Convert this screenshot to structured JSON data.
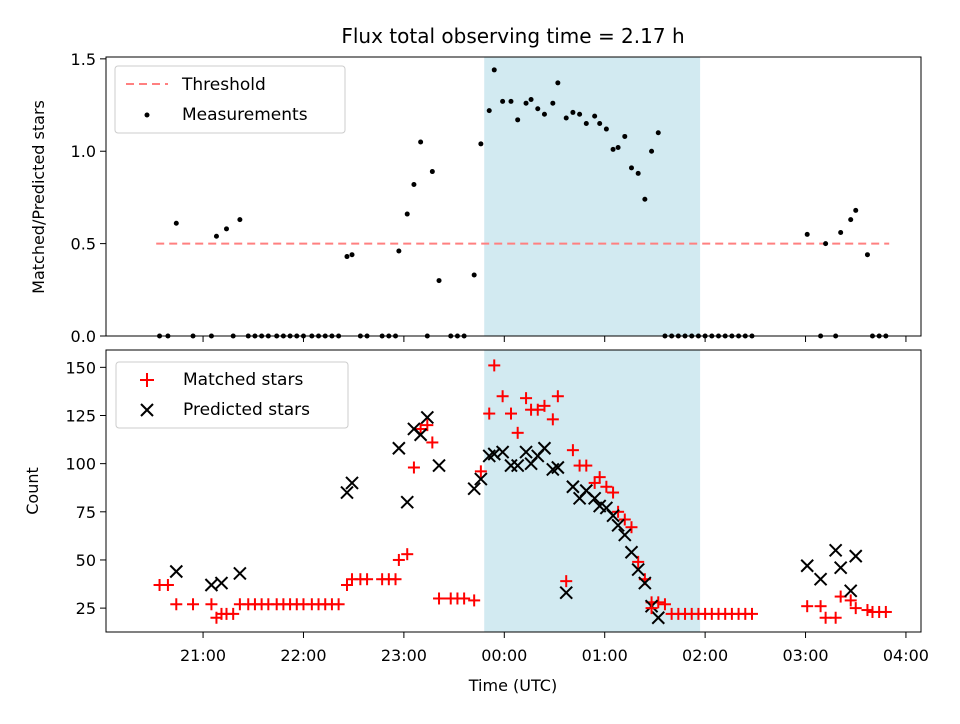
{
  "figure_title": "Flux total observing time = 2.17 h",
  "chart_data": [
    {
      "type": "scatter",
      "title": "Flux total observing time = 2.17 h",
      "xlabel": "",
      "ylabel": "Matched/Predicted stars",
      "xlim": [
        "20:02",
        "04:09"
      ],
      "ylim": [
        0.0,
        1.51
      ],
      "xticks": [
        "21:00",
        "22:00",
        "23:00",
        "00:00",
        "01:00",
        "02:00",
        "03:00",
        "04:00"
      ],
      "yticks": [
        "0.0",
        "0.5",
        "1.0",
        "1.5"
      ],
      "shaded_span": [
        "23:48",
        "01:57"
      ],
      "shaded_color": "#add8e6",
      "legend_position": "upper-left",
      "threshold": {
        "name": "Threshold",
        "y": 0.5,
        "x_range": [
          "20:32",
          "03:50"
        ],
        "color": "#ff8080",
        "style": "dashed"
      },
      "series": [
        {
          "name": "Measurements",
          "color": "#000000",
          "marker": "dot",
          "points": [
            [
              "20:34",
              0
            ],
            [
              "20:39",
              0
            ],
            [
              "20:44",
              0.61
            ],
            [
              "20:54",
              0
            ],
            [
              "21:05",
              0
            ],
            [
              "21:08",
              0.54
            ],
            [
              "21:14",
              0.58
            ],
            [
              "21:18",
              0
            ],
            [
              "21:22",
              0.63
            ],
            [
              "21:27",
              0
            ],
            [
              "21:31",
              0
            ],
            [
              "21:35",
              0
            ],
            [
              "21:39",
              0
            ],
            [
              "21:44",
              0
            ],
            [
              "21:48",
              0
            ],
            [
              "21:52",
              0
            ],
            [
              "21:56",
              0
            ],
            [
              "22:00",
              0
            ],
            [
              "22:05",
              0
            ],
            [
              "22:09",
              0
            ],
            [
              "22:13",
              0
            ],
            [
              "22:17",
              0
            ],
            [
              "22:21",
              0
            ],
            [
              "22:26",
              0.43
            ],
            [
              "22:29",
              0.44
            ],
            [
              "22:34",
              0
            ],
            [
              "22:38",
              0
            ],
            [
              "22:47",
              0
            ],
            [
              "22:51",
              0
            ],
            [
              "22:55",
              0
            ],
            [
              "22:57",
              0.46
            ],
            [
              "23:02",
              0.66
            ],
            [
              "23:06",
              0.82
            ],
            [
              "23:10",
              1.05
            ],
            [
              "23:14",
              0
            ],
            [
              "23:17",
              0.89
            ],
            [
              "23:21",
              0.3
            ],
            [
              "23:28",
              0
            ],
            [
              "23:32",
              0
            ],
            [
              "23:36",
              0
            ],
            [
              "23:42",
              0.33
            ],
            [
              "23:46",
              1.04
            ],
            [
              "23:51",
              1.22
            ],
            [
              "23:54",
              1.44
            ],
            [
              "23:59",
              1.27
            ],
            [
              "00:04",
              1.27
            ],
            [
              "00:08",
              1.17
            ],
            [
              "00:13",
              1.26
            ],
            [
              "00:16",
              1.28
            ],
            [
              "00:20",
              1.23
            ],
            [
              "00:24",
              1.2
            ],
            [
              "00:29",
              1.26
            ],
            [
              "00:32",
              1.37
            ],
            [
              "00:37",
              1.18
            ],
            [
              "00:41",
              1.21
            ],
            [
              "00:45",
              1.2
            ],
            [
              "00:49",
              1.15
            ],
            [
              "00:54",
              1.19
            ],
            [
              "00:57",
              1.15
            ],
            [
              "01:01",
              1.12
            ],
            [
              "01:05",
              1.01
            ],
            [
              "01:08",
              1.02
            ],
            [
              "01:12",
              1.08
            ],
            [
              "01:16",
              0.91
            ],
            [
              "01:20",
              0.88
            ],
            [
              "01:24",
              0.74
            ],
            [
              "01:28",
              1.0
            ],
            [
              "01:32",
              1.1
            ],
            [
              "01:36",
              0
            ],
            [
              "01:40",
              0
            ],
            [
              "01:44",
              0
            ],
            [
              "01:48",
              0
            ],
            [
              "01:52",
              0
            ],
            [
              "01:56",
              0
            ],
            [
              "02:00",
              0
            ],
            [
              "02:04",
              0
            ],
            [
              "02:08",
              0
            ],
            [
              "02:12",
              0
            ],
            [
              "02:16",
              0
            ],
            [
              "02:20",
              0
            ],
            [
              "02:24",
              0
            ],
            [
              "02:28",
              0
            ],
            [
              "03:01",
              0.55
            ],
            [
              "03:09",
              0
            ],
            [
              "03:12",
              0.5
            ],
            [
              "03:18",
              0
            ],
            [
              "03:21",
              0.56
            ],
            [
              "03:27",
              0.63
            ],
            [
              "03:30",
              0.68
            ],
            [
              "03:37",
              0.44
            ],
            [
              "03:40",
              0
            ],
            [
              "03:44",
              0
            ],
            [
              "03:48",
              0
            ]
          ]
        }
      ]
    },
    {
      "type": "scatter",
      "title": "",
      "xlabel": "Time (UTC)",
      "ylabel": "Count",
      "xlim": [
        "20:02",
        "04:09"
      ],
      "ylim": [
        12.6,
        159
      ],
      "xticks": [
        "21:00",
        "22:00",
        "23:00",
        "00:00",
        "01:00",
        "02:00",
        "03:00",
        "04:00"
      ],
      "yticks": [
        "25",
        "50",
        "75",
        "100",
        "125",
        "150"
      ],
      "shaded_span": [
        "23:48",
        "01:57"
      ],
      "shaded_color": "#add8e6",
      "legend_position": "upper-left",
      "series": [
        {
          "name": "Matched stars",
          "color": "#ff0000",
          "marker": "plus",
          "points": [
            [
              "20:34",
              37
            ],
            [
              "20:39",
              37
            ],
            [
              "20:44",
              27
            ],
            [
              "20:54",
              27
            ],
            [
              "21:05",
              27
            ],
            [
              "21:08",
              20
            ],
            [
              "21:11",
              22
            ],
            [
              "21:14",
              22
            ],
            [
              "21:18",
              22
            ],
            [
              "21:22",
              27
            ],
            [
              "21:27",
              27
            ],
            [
              "21:31",
              27
            ],
            [
              "21:35",
              27
            ],
            [
              "21:39",
              27
            ],
            [
              "21:44",
              27
            ],
            [
              "21:48",
              27
            ],
            [
              "21:52",
              27
            ],
            [
              "21:56",
              27
            ],
            [
              "22:00",
              27
            ],
            [
              "22:05",
              27
            ],
            [
              "22:09",
              27
            ],
            [
              "22:13",
              27
            ],
            [
              "22:17",
              27
            ],
            [
              "22:21",
              27
            ],
            [
              "22:26",
              37
            ],
            [
              "22:29",
              40
            ],
            [
              "22:34",
              40
            ],
            [
              "22:38",
              40
            ],
            [
              "22:47",
              40
            ],
            [
              "22:51",
              40
            ],
            [
              "22:55",
              40
            ],
            [
              "22:57",
              50
            ],
            [
              "23:02",
              53
            ],
            [
              "23:06",
              98
            ],
            [
              "23:10",
              118
            ],
            [
              "23:14",
              120
            ],
            [
              "23:17",
              111
            ],
            [
              "23:21",
              30
            ],
            [
              "23:28",
              30
            ],
            [
              "23:32",
              30
            ],
            [
              "23:36",
              30
            ],
            [
              "23:42",
              29
            ],
            [
              "23:46",
              96
            ],
            [
              "23:51",
              126
            ],
            [
              "23:54",
              151
            ],
            [
              "23:59",
              135
            ],
            [
              "00:04",
              126
            ],
            [
              "00:08",
              116
            ],
            [
              "00:13",
              134
            ],
            [
              "00:16",
              128
            ],
            [
              "00:20",
              128
            ],
            [
              "00:24",
              130
            ],
            [
              "00:29",
              123
            ],
            [
              "00:32",
              135
            ],
            [
              "00:37",
              39
            ],
            [
              "00:41",
              107
            ],
            [
              "00:45",
              99
            ],
            [
              "00:49",
              99
            ],
            [
              "00:54",
              90
            ],
            [
              "00:57",
              93
            ],
            [
              "01:01",
              88
            ],
            [
              "01:05",
              85
            ],
            [
              "01:08",
              75
            ],
            [
              "01:12",
              71
            ],
            [
              "01:16",
              67
            ],
            [
              "01:20",
              49
            ],
            [
              "01:24",
              40
            ],
            [
              "01:28",
              28
            ],
            [
              "01:32",
              28
            ],
            [
              "01:36",
              27
            ],
            [
              "01:40",
              22
            ],
            [
              "01:44",
              22
            ],
            [
              "01:48",
              22
            ],
            [
              "01:52",
              22
            ],
            [
              "01:56",
              22
            ],
            [
              "02:00",
              22
            ],
            [
              "02:04",
              22
            ],
            [
              "02:08",
              22
            ],
            [
              "02:12",
              22
            ],
            [
              "02:16",
              22
            ],
            [
              "02:20",
              22
            ],
            [
              "02:24",
              22
            ],
            [
              "02:28",
              22
            ],
            [
              "03:01",
              26
            ],
            [
              "03:09",
              26
            ],
            [
              "03:12",
              20
            ],
            [
              "03:18",
              20
            ],
            [
              "03:21",
              31
            ],
            [
              "03:27",
              29
            ],
            [
              "03:30",
              25
            ],
            [
              "03:37",
              24
            ],
            [
              "03:40",
              23
            ],
            [
              "03:44",
              23
            ],
            [
              "03:48",
              23
            ]
          ]
        },
        {
          "name": "Predicted stars",
          "color": "#000000",
          "marker": "x",
          "points": [
            [
              "20:44",
              44
            ],
            [
              "21:05",
              37
            ],
            [
              "21:11",
              38
            ],
            [
              "21:22",
              43
            ],
            [
              "22:26",
              85
            ],
            [
              "22:29",
              90
            ],
            [
              "22:57",
              108
            ],
            [
              "23:02",
              80
            ],
            [
              "23:06",
              118
            ],
            [
              "23:10",
              115
            ],
            [
              "23:14",
              124
            ],
            [
              "23:21",
              99
            ],
            [
              "23:42",
              87
            ],
            [
              "23:46",
              92
            ],
            [
              "23:51",
              104
            ],
            [
              "23:54",
              105
            ],
            [
              "23:59",
              106
            ],
            [
              "00:04",
              99
            ],
            [
              "00:08",
              99
            ],
            [
              "00:13",
              106
            ],
            [
              "00:16",
              100
            ],
            [
              "00:20",
              104
            ],
            [
              "00:24",
              108
            ],
            [
              "00:29",
              97
            ],
            [
              "00:32",
              98
            ],
            [
              "00:37",
              33
            ],
            [
              "00:41",
              88
            ],
            [
              "00:45",
              82
            ],
            [
              "00:49",
              86
            ],
            [
              "00:54",
              82
            ],
            [
              "00:57",
              78
            ],
            [
              "01:01",
              77
            ],
            [
              "01:05",
              73
            ],
            [
              "01:08",
              68
            ],
            [
              "01:12",
              63
            ],
            [
              "01:16",
              54
            ],
            [
              "01:20",
              45
            ],
            [
              "01:24",
              38
            ],
            [
              "01:28",
              26
            ],
            [
              "01:32",
              20
            ],
            [
              "03:01",
              47
            ],
            [
              "03:09",
              40
            ],
            [
              "03:18",
              55
            ],
            [
              "03:21",
              46
            ],
            [
              "03:27",
              34
            ],
            [
              "03:30",
              52
            ]
          ]
        },
        {
          "name": "",
          "color": "#ff0000",
          "marker": "plus",
          "points": [
            [
              "01:28",
              25
            ]
          ]
        }
      ]
    }
  ]
}
